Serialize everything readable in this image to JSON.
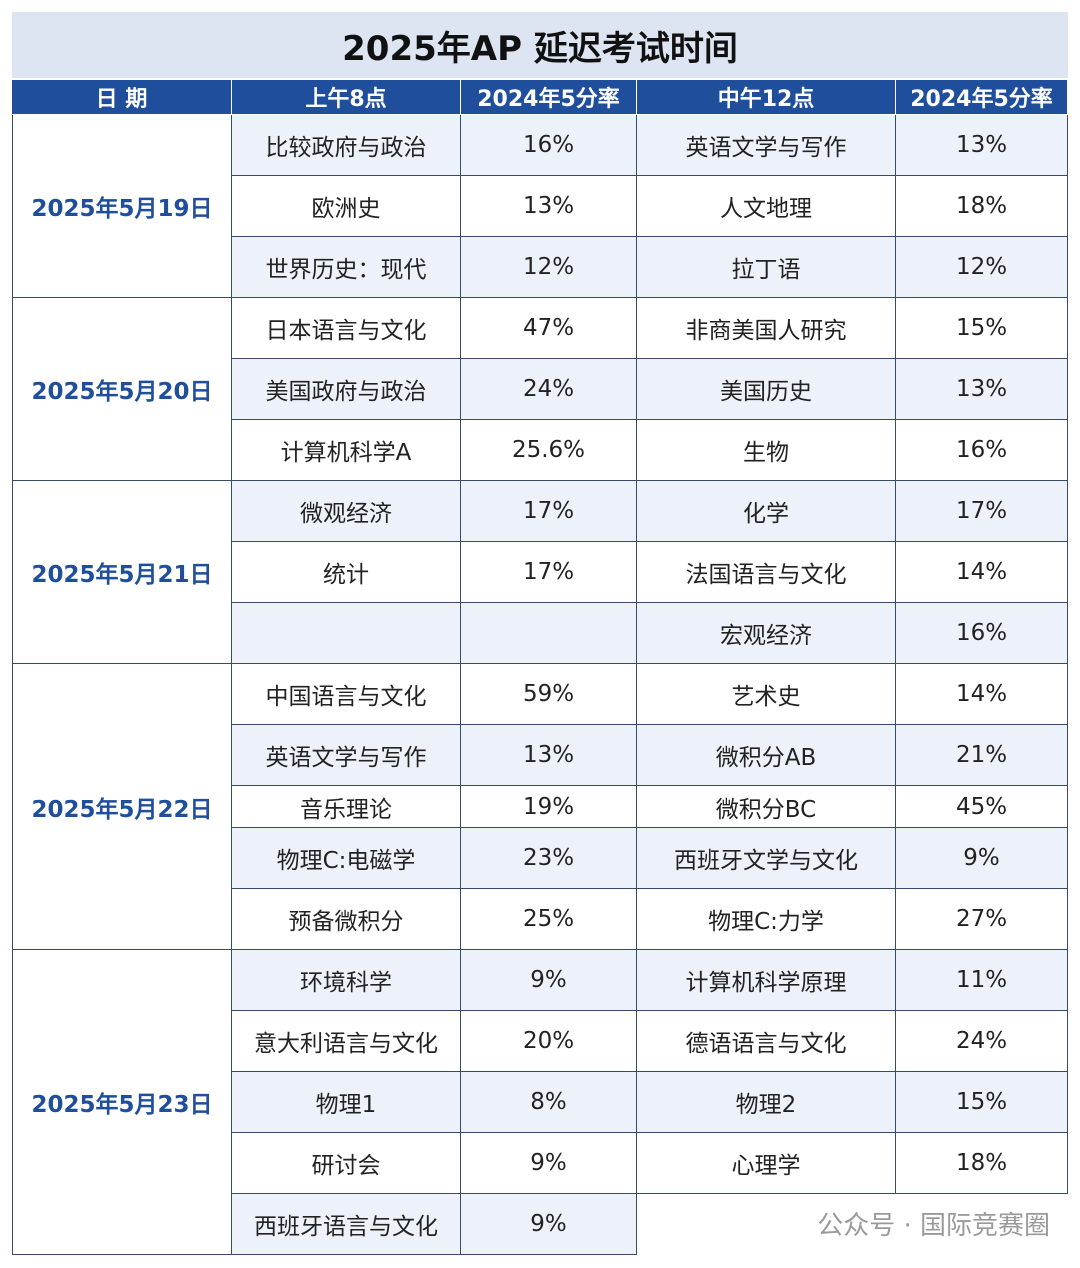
{
  "table": {
    "title": "2025年AP 延迟考试时间",
    "header": [
      "日 期",
      "上午8点",
      "2024年5分率",
      "中午12点",
      "2024年5分率"
    ],
    "groups": [
      {
        "date": "2025年5月19日",
        "rows": [
          [
            "比较政府与政治",
            "16%",
            "英语文学与写作",
            "13%"
          ],
          [
            "欧洲史",
            "13%",
            "人文地理",
            "18%"
          ],
          [
            "世界历史：现代",
            "12%",
            "拉丁语",
            "12%"
          ]
        ]
      },
      {
        "date": "2025年5月20日",
        "rows": [
          [
            "日本语言与文化",
            "47%",
            "非商美国人研究",
            "15%"
          ],
          [
            "美国政府与政治",
            "24%",
            "美国历史",
            "13%"
          ],
          [
            "计算机科学A",
            "25.6%",
            "生物",
            "16%"
          ]
        ]
      },
      {
        "date": "2025年5月21日",
        "rows": [
          [
            "微观经济",
            "17%",
            "化学",
            "17%"
          ],
          [
            "统计",
            "17%",
            "法国语言与文化",
            "14%"
          ],
          [
            null,
            null,
            "宏观经济",
            "16%"
          ]
        ]
      },
      {
        "date": "2025年5月22日",
        "rows": [
          [
            "中国语言与文化",
            "59%",
            "艺术史",
            "14%"
          ],
          [
            "英语文学与写作",
            "13%",
            "微积分AB",
            "21%"
          ],
          [
            "音乐理论",
            "19%",
            "微积分BC",
            "45%"
          ],
          [
            "物理C:电磁学",
            "23%",
            "西班牙文学与文化",
            "9%"
          ],
          [
            "预备微积分",
            "25%",
            "物理C:力学",
            "27%"
          ]
        ]
      },
      {
        "date": "2025年5月23日",
        "rows": [
          [
            "环境科学",
            "9%",
            "计算机科学原理",
            "11%"
          ],
          [
            "意大利语言与文化",
            "20%",
            "德语语言与文化",
            "24%"
          ],
          [
            "物理1",
            "8%",
            "物理2",
            "15%"
          ],
          [
            "研讨会",
            "9%",
            "心理学",
            "18%"
          ],
          [
            "西班牙语言与文化",
            "9%",
            "",
            ""
          ]
        ]
      }
    ],
    "watermark": "公众号 · 国际竞赛圈"
  }
}
